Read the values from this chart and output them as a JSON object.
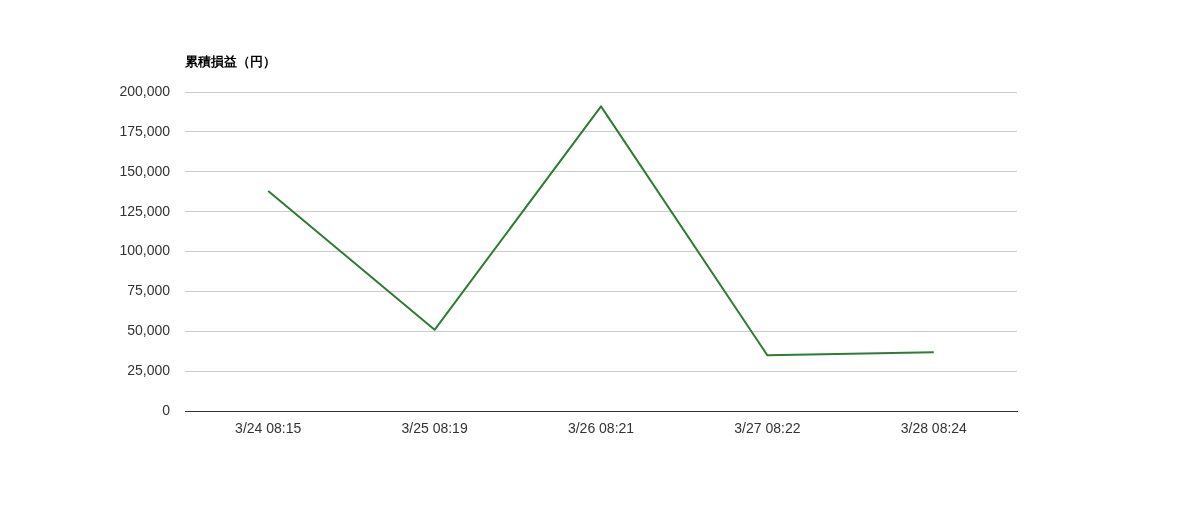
{
  "chart_data": {
    "type": "line",
    "ylabel": "累積損益（円）",
    "categories": [
      "3/24 08:15",
      "3/25 08:19",
      "3/26 08:21",
      "3/27 08:22",
      "3/28 08:24"
    ],
    "series": [
      {
        "color": "#2e7d32",
        "values": [
          138000,
          51000,
          191000,
          35000,
          37000
        ]
      }
    ],
    "ylim": [
      0,
      200000
    ],
    "yticks": [
      {
        "value": 0,
        "label": "0"
      },
      {
        "value": 25000,
        "label": "25,000"
      },
      {
        "value": 50000,
        "label": "50,000"
      },
      {
        "value": 75000,
        "label": "75,000"
      },
      {
        "value": 100000,
        "label": "100,000"
      },
      {
        "value": 125000,
        "label": "125,000"
      },
      {
        "value": 150000,
        "label": "150,000"
      },
      {
        "value": 175000,
        "label": "175,000"
      },
      {
        "value": 200000,
        "label": "200,000"
      }
    ],
    "grid": "y",
    "legend": false,
    "marker": "none",
    "line_style": "solid"
  }
}
